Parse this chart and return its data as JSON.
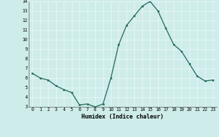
{
  "x": [
    0,
    1,
    2,
    3,
    4,
    5,
    6,
    7,
    8,
    9,
    10,
    11,
    12,
    13,
    14,
    15,
    16,
    17,
    18,
    19,
    20,
    21,
    22,
    23
  ],
  "y": [
    6.5,
    6.0,
    5.8,
    5.2,
    4.8,
    4.5,
    3.2,
    3.3,
    3.0,
    3.3,
    6.0,
    9.5,
    11.5,
    12.5,
    13.5,
    14.0,
    13.0,
    11.2,
    9.5,
    8.8,
    7.5,
    6.2,
    5.7,
    5.8
  ],
  "xlabel": "Humidex (Indice chaleur)",
  "ylim": [
    3,
    14
  ],
  "xlim_min": -0.5,
  "xlim_max": 23.5,
  "yticks": [
    3,
    4,
    5,
    6,
    7,
    8,
    9,
    10,
    11,
    12,
    13,
    14
  ],
  "xticks": [
    0,
    1,
    2,
    3,
    4,
    5,
    6,
    7,
    8,
    9,
    10,
    11,
    12,
    13,
    14,
    15,
    16,
    17,
    18,
    19,
    20,
    21,
    22,
    23
  ],
  "line_color": "#2a6e62",
  "marker_color": "#2a6e62",
  "bg_color": "#ceecea",
  "grid_color": "#e8f8f7",
  "tick_label_color": "#000000"
}
